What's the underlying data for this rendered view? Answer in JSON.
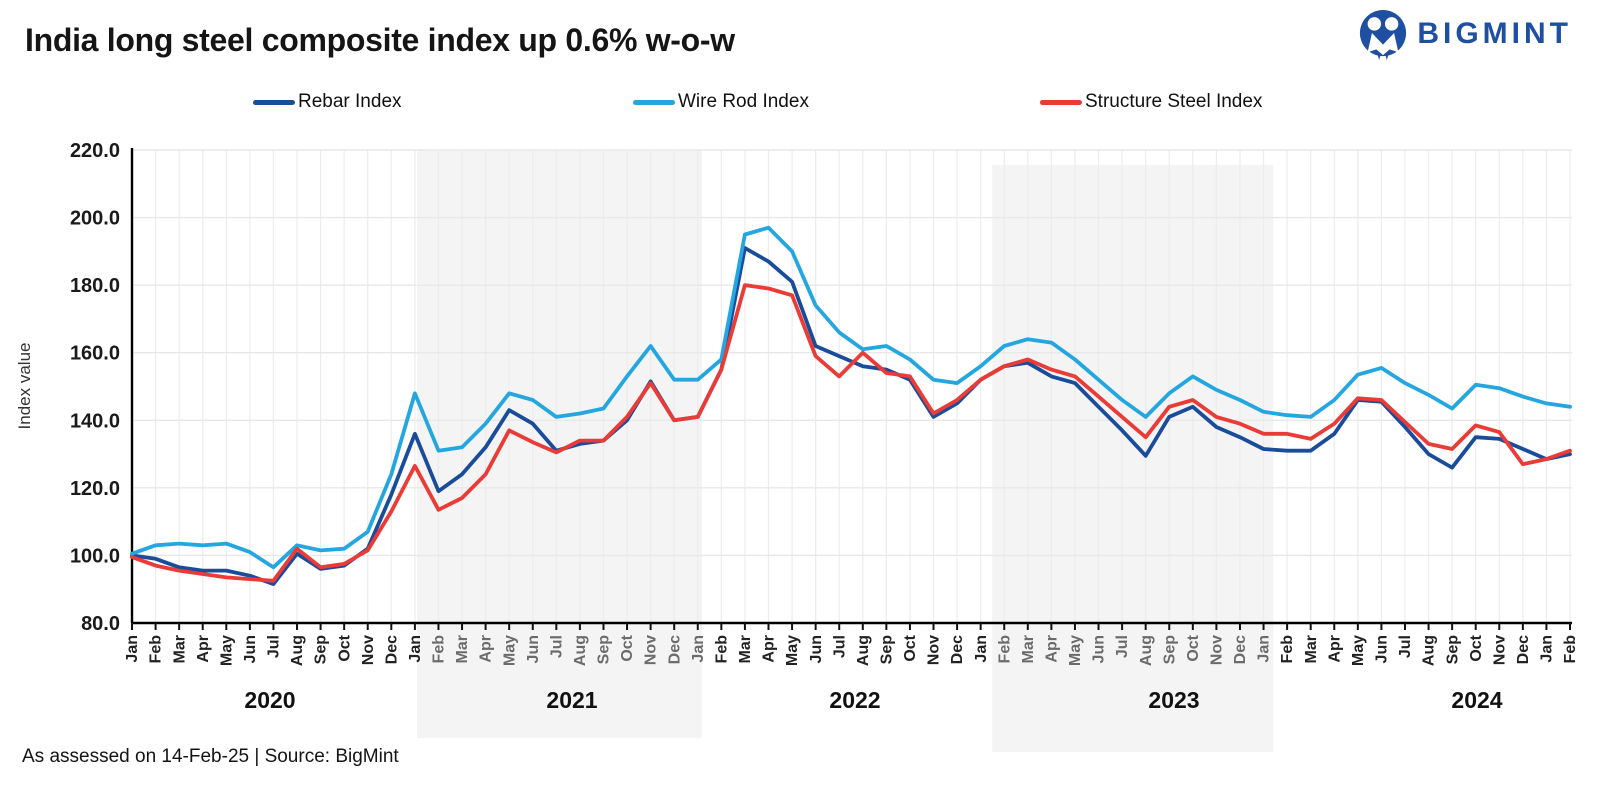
{
  "header": {
    "title": "India long steel composite index up 0.6% w-o-w",
    "logo_text": "BIGMINT"
  },
  "footer": {
    "text": "As assessed on 14-Feb-25 | Source: BigMint"
  },
  "brand": {
    "logo_blue": "#1E4FA1"
  },
  "chart_data": {
    "type": "line",
    "title": "India long steel composite index up 0.6% w-o-w",
    "xlabel": "",
    "ylabel": "Index value",
    "ylim": [
      80,
      220
    ],
    "ytick_step": 20,
    "ytick_labels": [
      "220.0",
      "200.0",
      "180.0",
      "160.0",
      "140.0",
      "120.0",
      "100.0",
      "80.0"
    ],
    "grid": true,
    "legend_position": "top",
    "x_range": [
      "Jan 2020",
      "Feb 2025"
    ],
    "x_months": [
      "Jan",
      "Feb",
      "Mar",
      "Apr",
      "May",
      "Jun",
      "Jul",
      "Aug",
      "Sep",
      "Oct",
      "Nov",
      "Dec",
      "Jan",
      "Feb",
      "Mar",
      "Apr",
      "May",
      "Jun",
      "Jul",
      "Aug",
      "Sep",
      "Oct",
      "Nov",
      "Dec",
      "Jan",
      "Feb",
      "Mar",
      "Apr",
      "May",
      "Jun",
      "Jul",
      "Aug",
      "Sep",
      "Oct",
      "Nov",
      "Dec",
      "Jan",
      "Feb",
      "Mar",
      "Apr",
      "May",
      "Jun",
      "Jul",
      "Aug",
      "Sep",
      "Oct",
      "Nov",
      "Dec",
      "Jan",
      "Feb",
      "Mar",
      "Apr",
      "May",
      "Jun",
      "Jul",
      "Aug",
      "Sep",
      "Oct",
      "Nov",
      "Dec",
      "Jan",
      "Feb"
    ],
    "year_labels": [
      "2020",
      "2021",
      "2022",
      "2023",
      "2024"
    ],
    "shaded_years": [
      "2021",
      "2023"
    ],
    "series": [
      {
        "name": "Rebar Index",
        "color": "#1A4C9C",
        "values": [
          100,
          99,
          96.5,
          95.5,
          95.5,
          94,
          91.5,
          100.5,
          96,
          97,
          102,
          118,
          136,
          119,
          124,
          132,
          143,
          139,
          131,
          133,
          134,
          140,
          151.5,
          140,
          141,
          155,
          191,
          187,
          181,
          162,
          159,
          156,
          155,
          152,
          141,
          145,
          152,
          156,
          157,
          153,
          151,
          144,
          137,
          129.5,
          141,
          144,
          138,
          135,
          131.5,
          131,
          131,
          136,
          146,
          145.5,
          138,
          130,
          126,
          135,
          134.5,
          131.5,
          128.5,
          130
        ]
      },
      {
        "name": "Wire Rod Index",
        "color": "#24A7E0",
        "values": [
          100.5,
          103,
          103.5,
          103,
          103.5,
          101,
          96.5,
          103,
          101.5,
          102,
          107,
          124,
          148,
          131,
          132,
          139,
          148,
          146,
          141,
          142,
          143.5,
          153,
          162,
          152,
          152,
          158,
          195,
          197,
          190,
          174,
          166,
          161,
          162,
          158,
          152,
          151,
          156,
          162,
          164,
          163,
          158,
          152,
          146,
          141,
          148,
          153,
          149,
          146,
          142.5,
          141.5,
          141,
          146,
          153.5,
          155.5,
          151,
          147.5,
          143.5,
          150.5,
          149.5,
          147,
          145,
          144
        ]
      },
      {
        "name": "Structure Steel Index",
        "color": "#EA3B36",
        "values": [
          99.5,
          97,
          95.5,
          94.5,
          93.5,
          93,
          92.5,
          102,
          96.5,
          97.5,
          101.5,
          113,
          126.5,
          113.5,
          117,
          124,
          137,
          133.5,
          130.5,
          134,
          134,
          141,
          151,
          140,
          141,
          155,
          180,
          179,
          177,
          159,
          153,
          160,
          154,
          153,
          142,
          146,
          152,
          156,
          158,
          155,
          153,
          147,
          141,
          135,
          144,
          146,
          141,
          139,
          136,
          136,
          134.5,
          139,
          146.5,
          146,
          139.5,
          133,
          131.5,
          138.5,
          136.5,
          127,
          128.5,
          131
        ]
      }
    ]
  }
}
